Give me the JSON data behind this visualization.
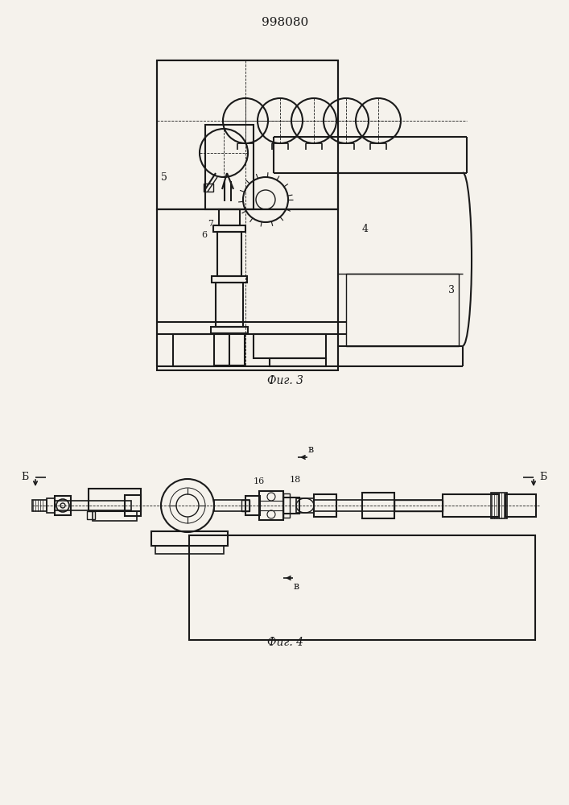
{
  "title": "998080",
  "fig3_caption": "Фиг. 3",
  "fig4_caption": "Фиг. 4",
  "bg_color": "#f5f2ec",
  "line_color": "#1a1a1a"
}
